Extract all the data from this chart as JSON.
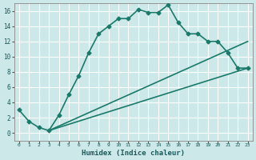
{
  "xlabel": "Humidex (Indice chaleur)",
  "bg_color": "#cce8e8",
  "grid_color": "#ffffff",
  "line_color": "#1a7a6a",
  "xlim": [
    -0.5,
    23.5
  ],
  "ylim": [
    -1,
    17
  ],
  "xticks": [
    0,
    1,
    2,
    3,
    4,
    5,
    6,
    7,
    8,
    9,
    10,
    11,
    12,
    13,
    14,
    15,
    16,
    17,
    18,
    19,
    20,
    21,
    22,
    23
  ],
  "yticks": [
    0,
    2,
    4,
    6,
    8,
    10,
    12,
    14,
    16
  ],
  "line1_x": [
    0,
    1,
    2,
    3,
    4,
    5,
    6,
    7,
    8,
    9,
    10,
    11,
    12,
    13,
    14,
    15,
    16,
    17,
    18,
    19,
    20,
    21,
    22,
    23
  ],
  "line1_y": [
    3.0,
    1.5,
    0.7,
    0.3,
    2.3,
    5.0,
    7.5,
    10.5,
    13.0,
    14.0,
    15.0,
    15.0,
    16.2,
    15.8,
    15.8,
    16.8,
    14.5,
    13.0,
    13.0,
    12.0,
    12.0,
    10.5,
    8.5,
    8.5
  ],
  "line2_x": [
    3,
    23
  ],
  "line2_y": [
    0.3,
    8.5
  ],
  "line3_x": [
    3,
    23
  ],
  "line3_y": [
    0.3,
    12.0
  ],
  "marker": "D",
  "markersize": 2.5,
  "linewidth": 1.2
}
